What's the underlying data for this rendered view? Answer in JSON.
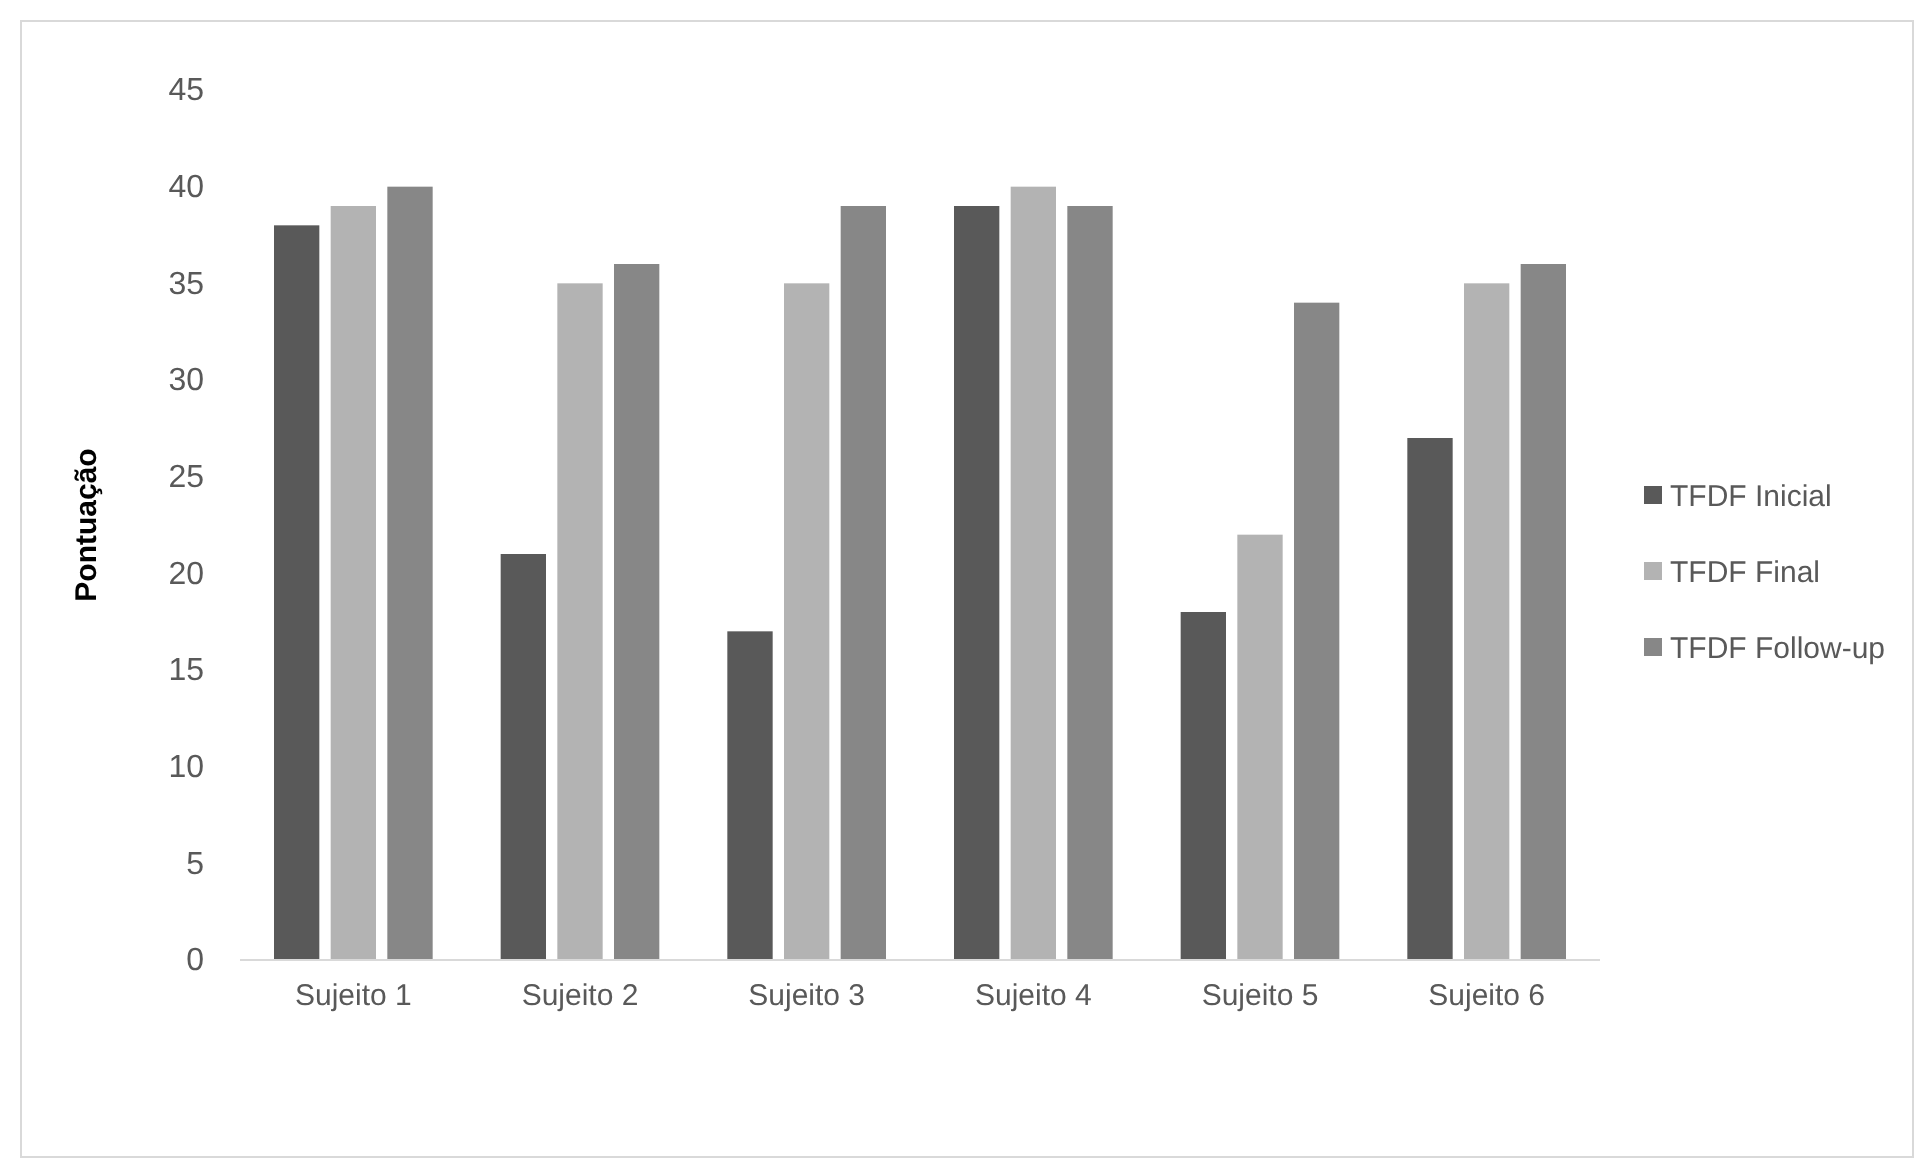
{
  "chart_data": {
    "type": "bar",
    "ylabel": "Pontuação",
    "categories": [
      "Sujeito 1",
      "Sujeito 2",
      "Sujeito 3",
      "Sujeito 4",
      "Sujeito 5",
      "Sujeito 6"
    ],
    "series": [
      {
        "name": "TFDF Inicial",
        "color": "#595959",
        "values": [
          38,
          21,
          17,
          39,
          18,
          27
        ]
      },
      {
        "name": "TFDF Final",
        "color": "#b3b3b3",
        "values": [
          39,
          35,
          35,
          40,
          22,
          35
        ]
      },
      {
        "name": "TFDF Follow-up",
        "color": "#878787",
        "values": [
          40,
          36,
          39,
          39,
          34,
          36
        ]
      }
    ],
    "ylim": [
      0,
      45
    ],
    "yticks": [
      0,
      5,
      10,
      15,
      20,
      25,
      30,
      35,
      40,
      45
    ],
    "grid": false,
    "legend": "right"
  }
}
